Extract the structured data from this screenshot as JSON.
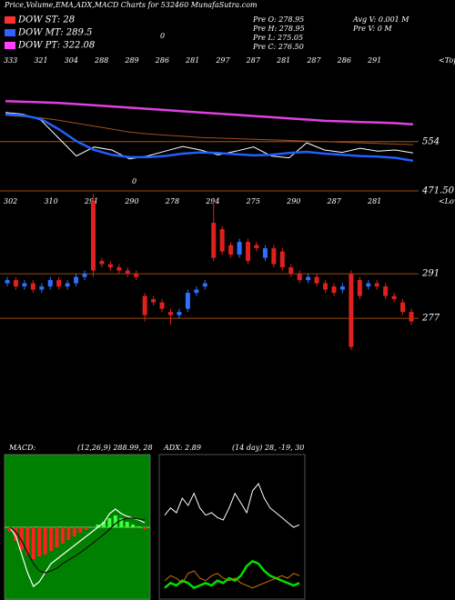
{
  "header": {
    "title": "Price,Volume,EMA,ADX,MACD Charts for 532460 MunafaSutra.com",
    "note": "0",
    "legend": [
      {
        "text": "DOW ST: 28",
        "color": "#ff3030"
      },
      {
        "text": "DOW MT: 289.5",
        "color": "#3060ff"
      },
      {
        "text": "DOW PT: 322.08",
        "color": "#ff40ff"
      }
    ],
    "stats": [
      "Pre O: 278.95",
      "Pre H: 278.95",
      "Pre L: 275.05",
      "Pre C: 276.50"
    ],
    "stats2": [
      "Avg V: 0.001 M",
      "Pre V: 0 M"
    ]
  },
  "chart_data": [
    {
      "type": "line",
      "side_label": "<Tops",
      "annotation": "0",
      "x_labels": [
        "333",
        "321",
        "304",
        "288",
        "289",
        "286",
        "281",
        "297",
        "287",
        "281",
        "287",
        "286",
        "291"
      ],
      "ylim": [
        441,
        700
      ],
      "yticks": [
        554,
        {
          "value": 471.5,
          "label": "471.50"
        }
      ],
      "grid_color": "#c86414",
      "series": [
        {
          "color": "#e040e0",
          "width": 2.5,
          "values": [
            622,
            621,
            620,
            619,
            617,
            615,
            613,
            611,
            609,
            607,
            605,
            603,
            601,
            599,
            597,
            595,
            593,
            591,
            589,
            588,
            587,
            586,
            585,
            583
          ]
        },
        {
          "color": "#a05020",
          "width": 1,
          "values": [
            598,
            596,
            594,
            590,
            585,
            580,
            575,
            570,
            567,
            565,
            563,
            561,
            560,
            559,
            558,
            557,
            556,
            555,
            554,
            553,
            552,
            551,
            550,
            549
          ]
        },
        {
          "color": "#ffffff",
          "width": 1,
          "values": [
            603,
            600,
            590,
            560,
            530,
            545,
            540,
            525,
            530,
            538,
            546,
            540,
            532,
            538,
            545,
            530,
            527,
            552,
            540,
            536,
            543,
            538,
            540,
            535
          ]
        },
        {
          "color": "#2060ff",
          "width": 2.5,
          "values": [
            600,
            598,
            592,
            575,
            555,
            540,
            532,
            528,
            528,
            530,
            534,
            536,
            535,
            533,
            531,
            532,
            535,
            537,
            534,
            532,
            530,
            529,
            527,
            522
          ]
        }
      ]
    },
    {
      "type": "candlestick",
      "side_label": "<Lows",
      "up_color": "#3070ff",
      "down_color": "#e02020",
      "x_labels": [
        "302",
        "310",
        "291",
        "290",
        "278",
        "294",
        "275",
        "290",
        "287",
        "281"
      ],
      "ylim": [
        265.6,
        315.6
      ],
      "yticks": [
        291,
        277
      ],
      "grid_color": "#c86414",
      "open": [
        288,
        289,
        287,
        288,
        286,
        287,
        289,
        287,
        288,
        290,
        314,
        295,
        294,
        293,
        292,
        291,
        284,
        283,
        282,
        279,
        278,
        280,
        285,
        287,
        307,
        305,
        300,
        297,
        301,
        300,
        296,
        299,
        298,
        293,
        291,
        289,
        290,
        288,
        287,
        286,
        291,
        289,
        287,
        288,
        287,
        284,
        282,
        279
      ],
      "close": [
        289,
        287,
        288,
        286,
        287,
        289,
        287,
        288,
        290,
        291,
        292,
        294,
        293,
        292,
        291,
        290,
        278,
        282,
        280,
        278,
        279,
        285,
        286,
        288,
        296,
        298,
        297,
        301,
        295,
        299,
        299,
        294,
        293,
        291,
        289,
        290,
        288,
        286,
        285,
        287,
        268,
        284,
        288,
        287,
        284,
        283,
        279,
        276
      ],
      "high": [
        290,
        290,
        289,
        289,
        288,
        290,
        290,
        289,
        291,
        292,
        316,
        296,
        295,
        294,
        293,
        292,
        285,
        284,
        283,
        280,
        280,
        286,
        287,
        289,
        315,
        306,
        301,
        302,
        302,
        301,
        300,
        300,
        299,
        294,
        292,
        291,
        291,
        289,
        288,
        288,
        292,
        290,
        289,
        289,
        288,
        285,
        283,
        280
      ],
      "low": [
        287,
        286,
        286,
        285,
        285,
        286,
        286,
        286,
        287,
        289,
        290,
        293,
        292,
        291,
        290,
        289,
        276,
        281,
        279,
        275,
        277,
        279,
        284,
        286,
        295,
        297,
        296,
        296,
        294,
        298,
        295,
        293,
        292,
        290,
        288,
        288,
        287,
        285,
        284,
        285,
        267,
        283,
        286,
        286,
        283,
        282,
        278,
        275
      ]
    },
    {
      "type": "macd",
      "title": "MACD:",
      "subtitle": "(12,26,9) 288.99, 28",
      "background": "#008000",
      "ylim": [
        -8,
        8
      ],
      "histogram": [
        -0.5,
        -1.5,
        -2.5,
        -3,
        -3.5,
        -3.2,
        -3,
        -2.6,
        -2.2,
        -1.8,
        -1.4,
        -1,
        -0.6,
        -0.3,
        0,
        0.3,
        0.6,
        1,
        1.3,
        1,
        0.6,
        0.3,
        0.1,
        -0.2
      ],
      "series": [
        {
          "color": "#ffffff",
          "width": 1.2,
          "values": [
            0,
            -1,
            -3,
            -5,
            -6.5,
            -6,
            -5,
            -4,
            -3.5,
            -3,
            -2.5,
            -2,
            -1.5,
            -1,
            -0.5,
            0,
            0.5,
            1.5,
            2,
            1.5,
            1.2,
            1,
            0.8,
            0.5
          ]
        },
        {
          "color": "#101010",
          "width": 1.2,
          "values": [
            0,
            -0.5,
            -1.5,
            -2.8,
            -4,
            -4.8,
            -5,
            -4.8,
            -4.5,
            -4,
            -3.6,
            -3.2,
            -2.8,
            -2.3,
            -1.8,
            -1.3,
            -0.8,
            -0.2,
            0.4,
            0.8,
            1,
            1,
            0.9,
            0.8
          ]
        }
      ]
    },
    {
      "type": "line",
      "title": "ADX: 2.89",
      "subtitle": "(14 day) 28, -19, 30",
      "ylim": [
        0,
        60
      ],
      "series": [
        {
          "color": "#ffffff",
          "width": 1,
          "values": [
            35,
            38,
            36,
            42,
            39,
            44,
            38,
            35,
            36,
            34,
            33,
            38,
            44,
            40,
            36,
            45,
            48,
            42,
            38,
            36,
            34,
            32,
            30,
            31
          ]
        },
        {
          "color": "#00e000",
          "width": 2.5,
          "values": [
            5,
            7,
            6,
            8,
            7,
            5,
            6,
            7,
            6,
            8,
            7,
            9,
            8,
            10,
            14,
            16,
            15,
            12,
            10,
            9,
            8,
            7,
            6,
            7
          ]
        },
        {
          "color": "#d07010",
          "width": 1,
          "values": [
            8,
            10,
            9,
            7,
            11,
            12,
            9,
            8,
            10,
            11,
            9,
            8,
            9,
            7,
            6,
            5,
            6,
            7,
            8,
            9,
            10,
            9,
            11,
            10
          ]
        }
      ]
    }
  ]
}
